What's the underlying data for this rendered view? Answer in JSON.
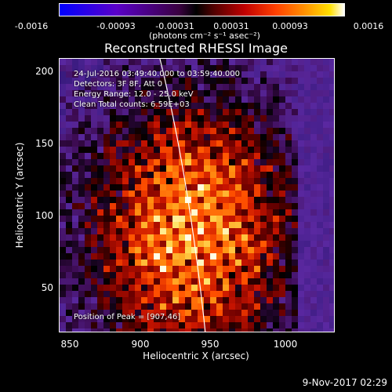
{
  "colorbar": {
    "ticks": [
      "-0.0016",
      "-0.00093",
      "-0.00031",
      "0.00031",
      "0.00093",
      "0.0016"
    ],
    "units": "(photons cm⁻² s⁻¹ asec⁻²)"
  },
  "title": "Reconstructed RHESSI Image",
  "annotations": {
    "time": "24-Jul-2016 03:49:40.000 to 03:59:40.000",
    "detectors": "Detectors: 3F 8F, Att 0",
    "energy": "Energy Range: 12.0 - 25.0 keV",
    "clean": "Clean    Total counts: 6.59E+03",
    "peak": "Position of Peak = [907,46]"
  },
  "axes": {
    "xlabel": "Heliocentric X (arcsec)",
    "ylabel": "Heliocentric Y (arcsec)",
    "xticks": [
      "850",
      "900",
      "950",
      "1000"
    ],
    "yticks": [
      "200",
      "150",
      "100",
      "50"
    ]
  },
  "footer": "9-Nov-2017 02:29"
}
